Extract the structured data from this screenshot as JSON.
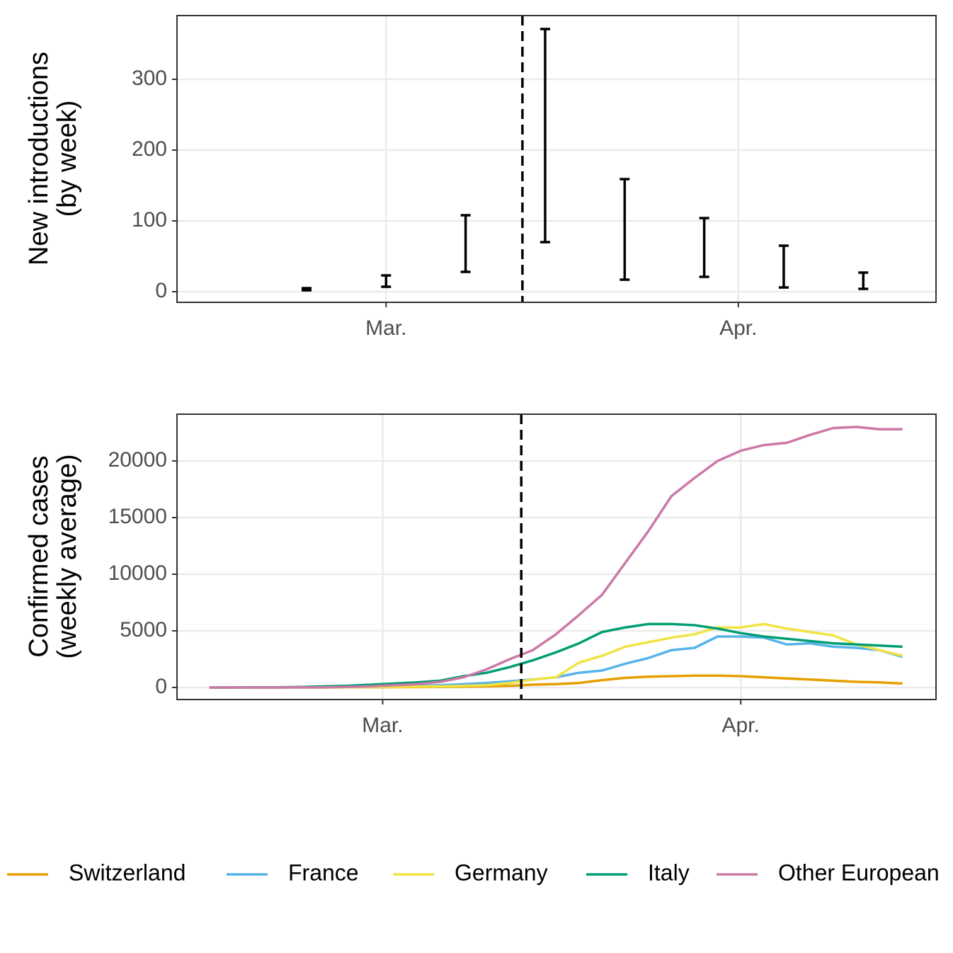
{
  "chart_data": [
    {
      "type": "errorbar",
      "y_label": [
        "New introductions",
        "(by week)"
      ],
      "x": [
        -7,
        0,
        7,
        14,
        21,
        28,
        35,
        42
      ],
      "low": [
        2,
        7,
        28,
        70,
        17,
        21,
        6,
        4
      ],
      "high": [
        5,
        23,
        108,
        371,
        159,
        104,
        65,
        27
      ],
      "color": "#000000",
      "vline": 12,
      "xlim": [
        -18.4,
        48.4
      ],
      "xticks": [
        {
          "value": 0,
          "label": "Mar."
        },
        {
          "value": 31,
          "label": "Apr."
        }
      ],
      "ylim": [
        -15,
        390
      ],
      "yticks": [
        0,
        100,
        200,
        300
      ],
      "grid": true
    },
    {
      "type": "line",
      "y_label": [
        "Confirmed cases",
        "(weekly average)"
      ],
      "x": [
        -15,
        -13,
        -11,
        -9,
        -7,
        -5,
        -3,
        -1,
        1,
        3,
        5,
        7,
        9,
        11,
        13,
        15,
        17,
        19,
        21,
        23,
        25,
        27,
        29,
        31,
        33,
        35,
        37,
        39,
        41,
        43,
        45
      ],
      "series": [
        {
          "name": "Switzerland",
          "color": "#E69F00",
          "values": [
            0,
            0,
            0,
            0,
            0,
            0,
            10,
            20,
            30,
            40,
            60,
            80,
            100,
            150,
            250,
            300,
            400,
            650,
            850,
            950,
            1000,
            1050,
            1050,
            1000,
            900,
            800,
            700,
            600,
            500,
            450,
            350
          ]
        },
        {
          "name": "France",
          "color": "#56B4E9",
          "values": [
            0,
            0,
            0,
            0,
            0,
            10,
            20,
            50,
            80,
            120,
            200,
            300,
            400,
            550,
            700,
            900,
            1300,
            1500,
            2100,
            2600,
            3300,
            3500,
            4500,
            4500,
            4400,
            3800,
            3900,
            3600,
            3500,
            3300,
            2700
          ]
        },
        {
          "name": "Germany",
          "color": "#F0E442",
          "values": [
            0,
            0,
            0,
            0,
            0,
            10,
            20,
            40,
            60,
            80,
            100,
            150,
            200,
            400,
            700,
            900,
            2200,
            2800,
            3600,
            4000,
            4400,
            4700,
            5300,
            5300,
            5600,
            5200,
            4900,
            4600,
            3800,
            3300,
            2800
          ]
        },
        {
          "name": "Italy",
          "color": "#009E73",
          "values": [
            0,
            0,
            10,
            20,
            50,
            100,
            150,
            250,
            350,
            450,
            600,
            1000,
            1300,
            1800,
            2400,
            3100,
            3900,
            4900,
            5300,
            5600,
            5600,
            5500,
            5200,
            4800,
            4500,
            4300,
            4100,
            3900,
            3800,
            3700,
            3600
          ]
        },
        {
          "name": "Other European",
          "color": "#CC79A7",
          "values": [
            0,
            0,
            0,
            0,
            10,
            20,
            50,
            100,
            200,
            300,
            500,
            900,
            1600,
            2500,
            3300,
            4700,
            6400,
            8200,
            11000,
            13800,
            16900,
            18500,
            20000,
            20900,
            21400,
            21600,
            22300,
            22900,
            23000,
            22800,
            22800
          ]
        }
      ],
      "vline": 12,
      "xlim": [
        -17.8,
        47.9
      ],
      "xticks": [
        {
          "value": 0,
          "label": "Mar."
        },
        {
          "value": 31,
          "label": "Apr."
        }
      ],
      "ylim": [
        -1062,
        24125
      ],
      "yticks": [
        0,
        5000,
        10000,
        15000,
        20000
      ],
      "grid": true,
      "legend": "bottom"
    }
  ]
}
